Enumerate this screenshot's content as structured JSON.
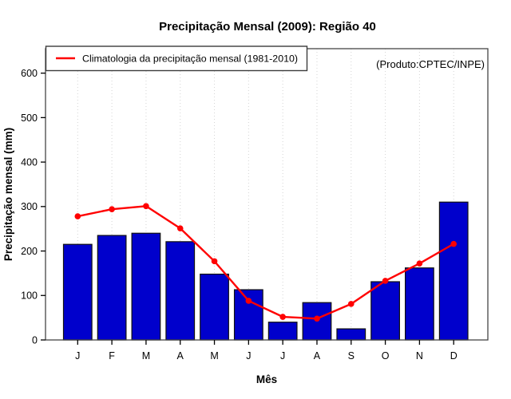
{
  "colors": {
    "bar_fill": "#0000cc",
    "bar_border": "#111111",
    "line": "#ff0000",
    "grid": "#d4d4d4",
    "box": "#454545",
    "tick": "#000000",
    "legend_border": "#3c3c3c",
    "watermark_text": "#9a9a9a"
  },
  "chart_data": {
    "type": "bar",
    "title": "Precipitação Mensal (2009): Região 40",
    "xlabel": "Mês",
    "ylabel": "Precipitação mensal (mm)",
    "categories": [
      "J",
      "F",
      "M",
      "A",
      "M",
      "J",
      "J",
      "A",
      "S",
      "O",
      "N",
      "D"
    ],
    "series": [
      {
        "name": "Precipitação Mensal (2009)",
        "type": "bar",
        "color": "#0000cc",
        "values": [
          215,
          235,
          240,
          221,
          148,
          113,
          40,
          84,
          25,
          131,
          162,
          310
        ]
      },
      {
        "name": "Climatologia da precipitação mensal (1981-2010)",
        "type": "line",
        "color": "#ff0000",
        "values": [
          278,
          294,
          301,
          251,
          177,
          88,
          52,
          48,
          81,
          133,
          172,
          216
        ]
      }
    ],
    "ylim": [
      0,
      655
    ],
    "yticks": [
      0,
      100,
      200,
      300,
      400,
      500,
      600
    ],
    "grid": "vertical dotted lines at each month",
    "legend_position": "top-left",
    "annotation": "(Produto:CPTEC/INPE)"
  }
}
